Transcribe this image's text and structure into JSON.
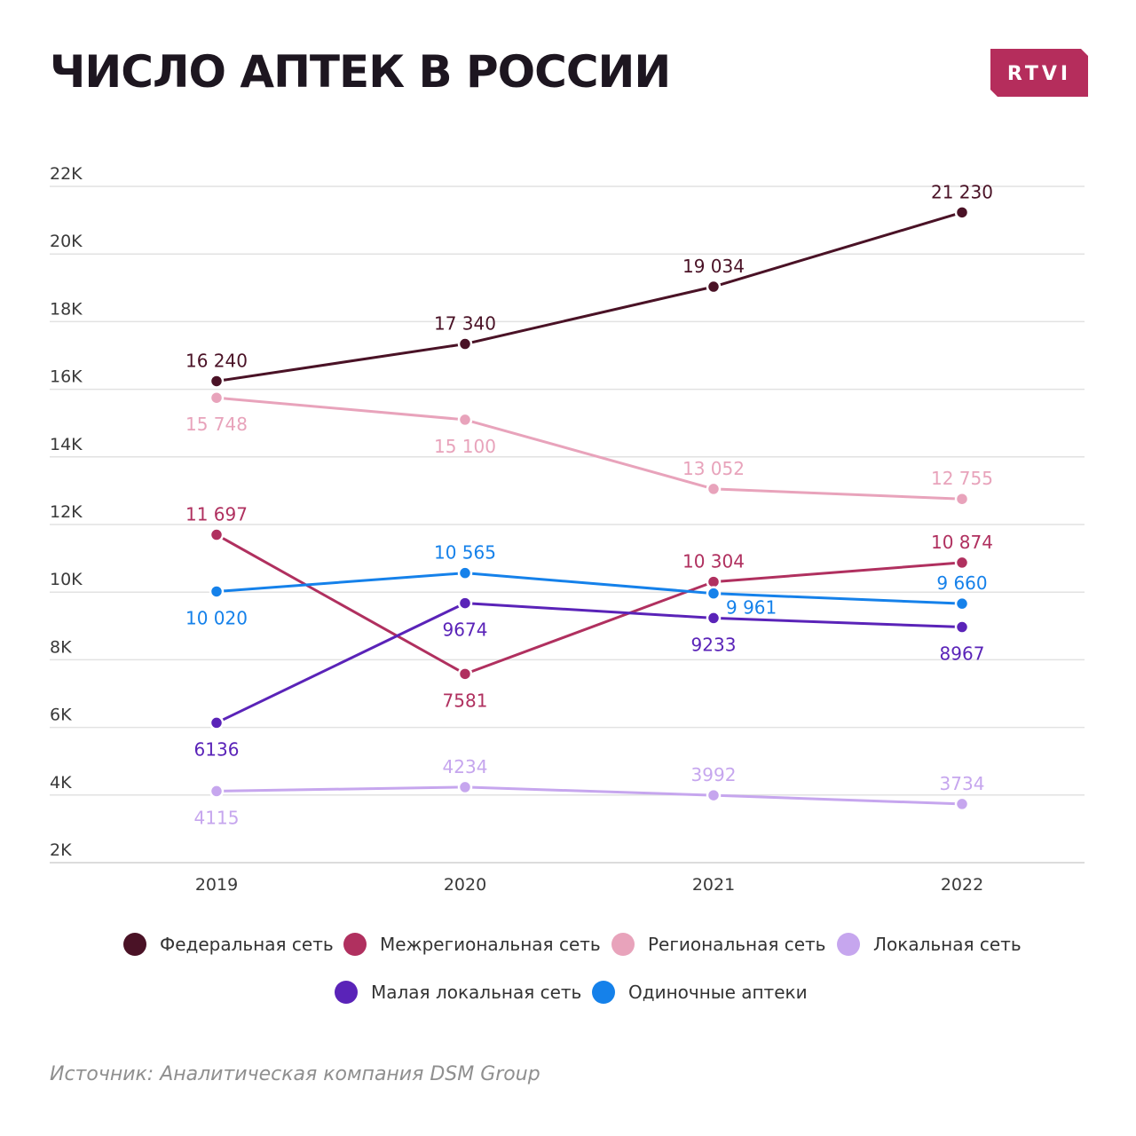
{
  "brand": {
    "name": "RTVI",
    "color": "#b52d5c"
  },
  "source": "Источник: Аналитическая компания DSM Group",
  "chart_data": {
    "type": "line",
    "title": "ЧИСЛО АПТЕК В РОССИИ",
    "x": [
      "2019",
      "2020",
      "2021",
      "2022"
    ],
    "ylim": [
      2000,
      22000
    ],
    "yticks": [
      2000,
      4000,
      6000,
      8000,
      10000,
      12000,
      14000,
      16000,
      18000,
      20000,
      22000
    ],
    "ytick_labels": [
      "2K",
      "4K",
      "6K",
      "8K",
      "10K",
      "12K",
      "14K",
      "16K",
      "18K",
      "20K",
      "22K"
    ],
    "grid": true,
    "legend": "bottom",
    "series": [
      {
        "name": "Федеральная сеть",
        "color": "#4a1226",
        "values": [
          16240,
          17340,
          19034,
          21230
        ],
        "labels": [
          "16 240",
          "17 340",
          "19 034",
          "21 230"
        ],
        "label_pos": [
          "above",
          "above",
          "above",
          "above"
        ]
      },
      {
        "name": "Межрегиональная сеть",
        "color": "#b0305f",
        "values": [
          11697,
          7581,
          10304,
          10874
        ],
        "labels": [
          "11 697",
          "7581",
          "10 304",
          "10 874"
        ],
        "label_pos": [
          "above",
          "below",
          "above",
          "above"
        ]
      },
      {
        "name": "Региональная сеть",
        "color": "#e8a3bb",
        "values": [
          15748,
          15100,
          13052,
          12755
        ],
        "labels": [
          "15 748",
          "15 100",
          "13 052",
          "12 755"
        ],
        "label_pos": [
          "below",
          "below",
          "above",
          "above"
        ]
      },
      {
        "name": "Локальная сеть",
        "color": "#c6a6ee",
        "values": [
          4115,
          4234,
          3992,
          3734
        ],
        "labels": [
          "4115",
          "4234",
          "3992",
          "3734"
        ],
        "label_pos": [
          "below",
          "above",
          "above",
          "above"
        ]
      },
      {
        "name": "Малая локальная сеть",
        "color": "#5a23b8",
        "values": [
          6136,
          9674,
          9233,
          8967
        ],
        "labels": [
          "6136",
          "9674",
          "9233",
          "8967"
        ],
        "label_pos": [
          "below",
          "below",
          "below",
          "below"
        ]
      },
      {
        "name": "Одиночные аптеки",
        "color": "#1581ea",
        "values": [
          10020,
          10565,
          9961,
          9660
        ],
        "labels": [
          "10 020",
          "10 565",
          "9 961",
          "9 660"
        ],
        "label_pos": [
          "below",
          "above",
          "below-right",
          "above"
        ]
      }
    ]
  }
}
